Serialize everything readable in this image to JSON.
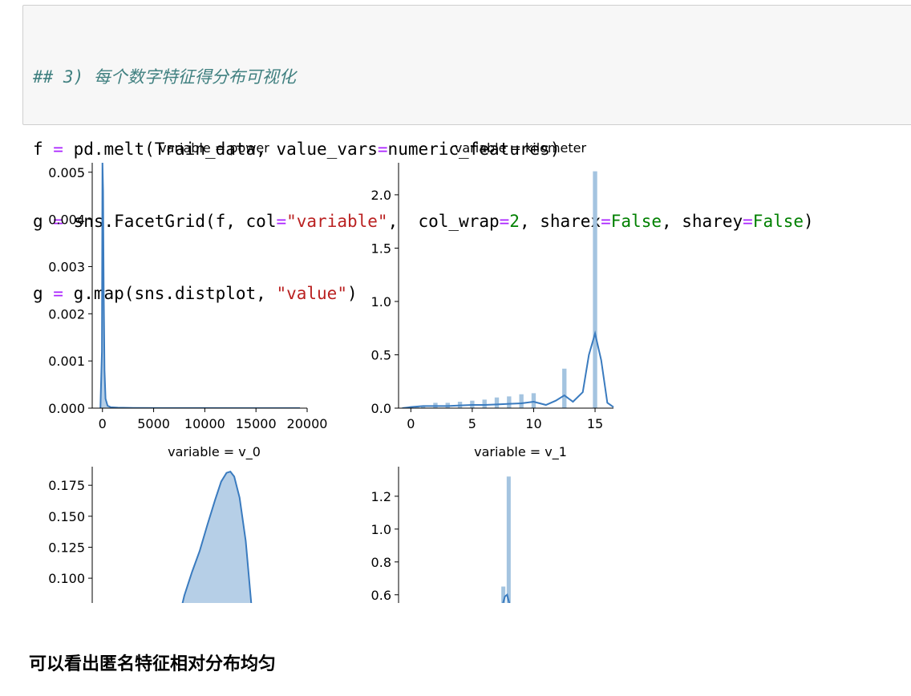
{
  "code_cell": {
    "line1_comment": "## 3) 每个数字特征得分布可视化",
    "line2": {
      "a": "f ",
      "op": "=",
      "b": " pd.melt(Train_data, value_vars",
      "op2": "=",
      "c": "numeric_features)"
    },
    "line3": {
      "a": "g ",
      "op": "=",
      "b": " sns.FacetGrid(f, col",
      "op2": "=",
      "str": "\"variable\"",
      "c": ",  col_wrap",
      "op3": "=",
      "num": "2",
      "d": ", sharex",
      "op4": "=",
      "kw1": "False",
      "e": ", sharey",
      "op5": "=",
      "kw2": "False",
      "f": ")"
    },
    "line4": {
      "a": "g ",
      "op": "=",
      "b": " g.map(sns.distplot, ",
      "str": "\"value\"",
      "c": ")"
    }
  },
  "chart_data": [
    {
      "type": "area",
      "title": "variable = power",
      "xlim": [
        -1000,
        20000
      ],
      "ylim": [
        0,
        0.0052
      ],
      "xticks": [
        0,
        5000,
        10000,
        15000,
        20000
      ],
      "xtick_labels": [
        "0",
        "5000",
        "10000",
        "15000",
        "20000"
      ],
      "yticks": [
        0,
        0.001,
        0.002,
        0.003,
        0.004,
        0.005
      ],
      "ytick_labels": [
        "0.000",
        "0.001",
        "0.002",
        "0.003",
        "0.004",
        "0.005"
      ],
      "series": [
        {
          "kind": "kde",
          "x": [
            -200,
            -50,
            0,
            60,
            120,
            200,
            300,
            500,
            800,
            1500,
            3000,
            6000,
            10000,
            15000,
            19300
          ],
          "y": [
            0,
            0.0012,
            0.0052,
            0.0046,
            0.0025,
            0.0008,
            0.0002,
            5e-05,
            2e-05,
            1e-05,
            5e-06,
            3e-06,
            2e-06,
            1e-06,
            1e-06
          ]
        }
      ]
    },
    {
      "type": "bar",
      "title": "variable = kilometer",
      "xlim": [
        -1,
        16.5
      ],
      "ylim": [
        0,
        2.3
      ],
      "xticks": [
        0,
        5,
        10,
        15
      ],
      "xtick_labels": [
        "0",
        "5",
        "10",
        "15"
      ],
      "yticks": [
        0,
        0.5,
        1.0,
        1.5,
        2.0
      ],
      "ytick_labels": [
        "0.0",
        "0.5",
        "1.0",
        "1.5",
        "2.0"
      ],
      "bars": [
        {
          "x": 0.5,
          "height": 0.01
        },
        {
          "x": 1,
          "height": 0.02
        },
        {
          "x": 2,
          "height": 0.05
        },
        {
          "x": 3,
          "height": 0.05
        },
        {
          "x": 4,
          "height": 0.06
        },
        {
          "x": 5,
          "height": 0.07
        },
        {
          "x": 6,
          "height": 0.08
        },
        {
          "x": 7,
          "height": 0.1
        },
        {
          "x": 8,
          "height": 0.11
        },
        {
          "x": 9,
          "height": 0.13
        },
        {
          "x": 10,
          "height": 0.14
        },
        {
          "x": 12.5,
          "height": 0.37
        },
        {
          "x": 15,
          "height": 2.22
        }
      ],
      "bar_width": 0.35,
      "series": [
        {
          "kind": "kde",
          "x": [
            -0.7,
            0,
            1,
            2,
            3,
            4,
            5,
            6,
            7,
            8,
            9,
            10,
            11,
            11.8,
            12.5,
            13.2,
            14,
            14.5,
            15,
            15.5,
            16,
            16.5
          ],
          "y": [
            0,
            0.01,
            0.02,
            0.02,
            0.02,
            0.025,
            0.03,
            0.03,
            0.035,
            0.04,
            0.045,
            0.06,
            0.03,
            0.07,
            0.12,
            0.06,
            0.15,
            0.5,
            0.7,
            0.45,
            0.05,
            0.01
          ]
        }
      ]
    },
    {
      "type": "area",
      "title": "variable = v_0",
      "ylim": [
        0.08,
        0.19
      ],
      "yticks": [
        0.1,
        0.125,
        0.15,
        0.175
      ],
      "ytick_labels": [
        "0.100",
        "0.125",
        "0.150",
        "0.175"
      ],
      "series": [
        {
          "kind": "kde",
          "x": [
            -7,
            -6,
            -5,
            -4,
            -3,
            -2,
            -1.2,
            -0.5,
            0,
            0.5,
            1.2,
            2,
            3
          ],
          "y": [
            0.06,
            0.086,
            0.105,
            0.122,
            0.143,
            0.163,
            0.178,
            0.185,
            0.186,
            0.182,
            0.165,
            0.13,
            0.06
          ]
        }
      ],
      "xlim": [
        -18,
        10
      ]
    },
    {
      "type": "bar",
      "title": "variable = v_1",
      "ylim": [
        0.55,
        1.38
      ],
      "yticks": [
        0.6,
        0.8,
        1.0,
        1.2
      ],
      "ytick_labels": [
        "0.6",
        "0.8",
        "1.0",
        "1.2"
      ],
      "xlim": [
        -20,
        20
      ],
      "bars": [
        {
          "x": -0.5,
          "height": 0.65
        },
        {
          "x": 0.5,
          "height": 1.32
        }
      ],
      "bar_width": 0.75,
      "series": [
        {
          "kind": "kde",
          "x": [
            -1,
            -0.2,
            0.2,
            1
          ],
          "y": [
            0.5,
            0.59,
            0.6,
            0.5
          ]
        }
      ]
    }
  ],
  "markdown": {
    "text": "可以看出匿名特征相对分布均匀"
  },
  "colors": {
    "line": "#3a7bbf",
    "fill": "#a9c7e3",
    "bar": "#a4c4e0",
    "code_bg": "#f7f7f7"
  }
}
